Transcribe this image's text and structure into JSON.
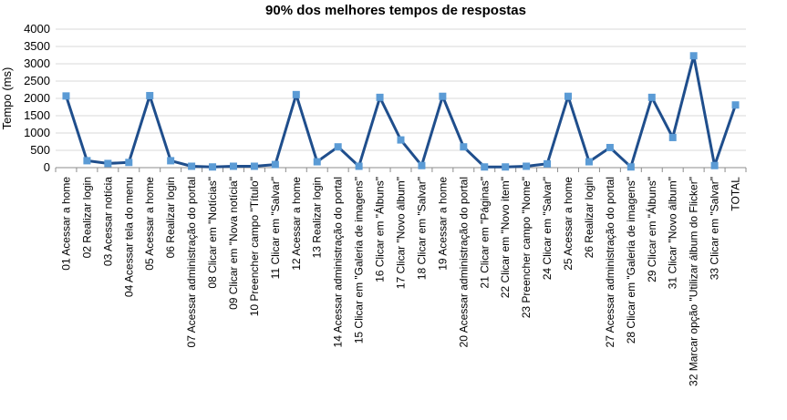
{
  "chart_data": {
    "type": "line",
    "title": "90% dos melhores tempos de respostas",
    "xlabel": "",
    "ylabel": "Tempo (ms)",
    "ylim": [
      0,
      4000
    ],
    "yticks": [
      "0",
      "500",
      "1000",
      "1500",
      "2000",
      "2500",
      "3000",
      "3500",
      "4000"
    ],
    "grid": "horizontal",
    "line_color": "#1f4e8c",
    "marker_color": "#5b9bd5",
    "categories": [
      "01 Acessar a home",
      "02 Realizar login",
      "03 Acessar notícia",
      "04 Acessar tela do menu",
      "05 Acessar a home",
      "06 Realizar login",
      "07 Acessar administração do portal",
      "08 Clicar em \"Notícias\"",
      "09 Clicar em \"Nova notícia\"",
      "10 Preencher campo \"Título\"",
      "11 Clicar em \"Salvar\"",
      "12 Acessar a home",
      "13 Realizar login",
      "14 Acessar administração do portal",
      "15 Clicar em \"Galeria de imagens\"",
      "16 Clicar em \"Álbuns\"",
      "17 Clicar \"Novo álbum\"",
      "18 Clicar em \"Salvar\"",
      "19 Acessar a home",
      "20 Acessar administração do portal",
      "21 Clicar em \"Páginas\"",
      "22 Clicar em \"Novo item\"",
      "23 Preencher campo \"Nome\"",
      "24 Clicar em \"Salvar\"",
      "25 Acessar a home",
      "26 Realizar login",
      "27 Acessar administração do portal",
      "28 Clicar em \"Galeria de imagens\"",
      "29 Clicar em \"Álbuns\"",
      "31 Clicar \"Novo álbum\"",
      "32 Marcar opção \"Utilizar álbum do Flicker\"",
      "33 Clicar em \"Salvar\"",
      "TOTAL"
    ],
    "series": [
      {
        "name": "",
        "values": [
          2070,
          200,
          120,
          150,
          2080,
          200,
          40,
          20,
          40,
          40,
          90,
          2110,
          170,
          600,
          40,
          2030,
          800,
          60,
          2060,
          600,
          20,
          20,
          40,
          110,
          2060,
          170,
          580,
          20,
          2030,
          870,
          3230,
          60,
          1810
        ]
      }
    ]
  }
}
